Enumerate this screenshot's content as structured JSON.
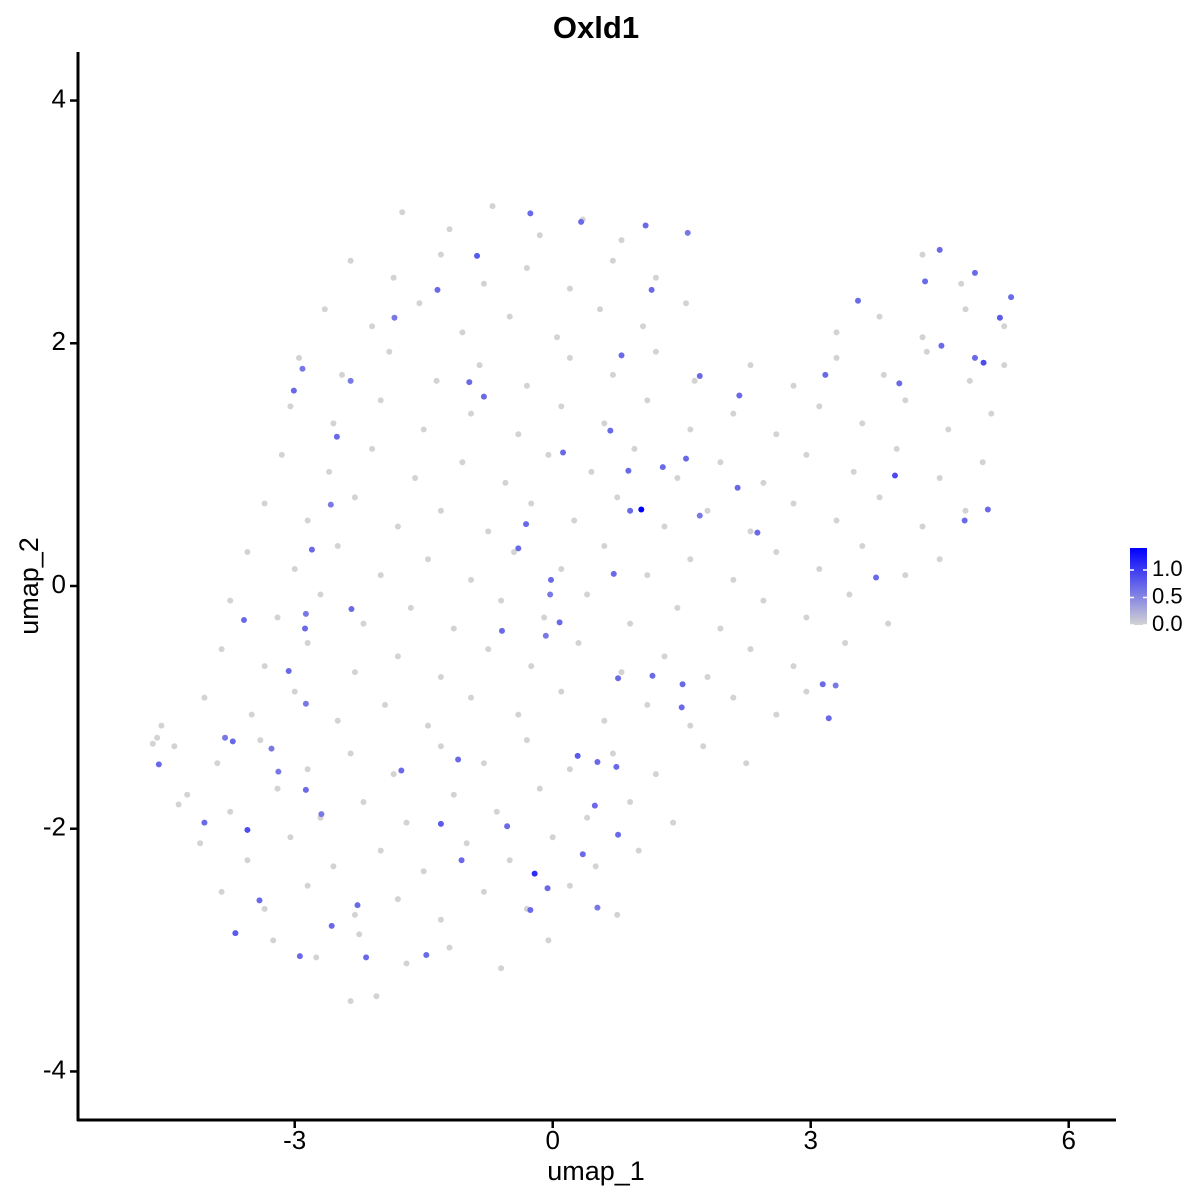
{
  "chart_data": {
    "type": "scatter",
    "title": "Oxld1",
    "x_label": "umap_1",
    "y_label": "umap_2",
    "xlim": [
      -5.52,
      6.55
    ],
    "ylim": [
      -4.4,
      4.4
    ],
    "xticks": [
      -3,
      0,
      3,
      6
    ],
    "yticks": [
      -4,
      -2,
      0,
      2,
      4
    ],
    "colorscale": {
      "low": "#d3d3d3",
      "high": "#0000ff",
      "lim": [
        0,
        1.4
      ],
      "ticks": [
        {
          "value": 0,
          "label": "0.0"
        },
        0.5,
        {
          "value": 1,
          "label": "1.0"
        }
      ]
    },
    "x": [
      -1.75,
      -1.2,
      -0.7,
      -0.15,
      0.35,
      0.8,
      -2.35,
      -1.85,
      -1.3,
      -0.8,
      -0.3,
      0.2,
      0.7,
      1.2,
      4.3,
      4.75,
      -2.65,
      -2.1,
      -1.55,
      -1.05,
      -0.5,
      0.05,
      0.55,
      1.05,
      1.55,
      3.3,
      3.8,
      4.3,
      4.8,
      5.25,
      -2.95,
      -2.45,
      -1.9,
      -1.35,
      -0.85,
      -0.3,
      0.2,
      0.7,
      1.2,
      1.65,
      2.3,
      2.8,
      3.3,
      3.85,
      4.35,
      4.85,
      5.25,
      -3.05,
      -2.55,
      -2.0,
      -1.5,
      -0.95,
      -0.4,
      0.1,
      0.6,
      1.1,
      1.6,
      2.1,
      2.6,
      3.1,
      3.6,
      4.1,
      4.6,
      5.1,
      -3.15,
      -2.6,
      -2.1,
      -1.6,
      -1.05,
      -0.55,
      -0.05,
      0.45,
      0.95,
      1.45,
      1.95,
      2.45,
      2.95,
      3.5,
      4.0,
      4.5,
      5.0,
      -3.35,
      -2.85,
      -2.3,
      -1.8,
      -1.3,
      -0.75,
      -0.25,
      0.25,
      0.75,
      1.3,
      1.8,
      2.3,
      2.8,
      3.3,
      3.8,
      4.3,
      4.8,
      -3.55,
      -3.0,
      -2.5,
      -2.0,
      -1.45,
      -0.95,
      -0.45,
      0.1,
      0.6,
      1.1,
      1.6,
      2.1,
      2.6,
      3.1,
      3.6,
      4.1,
      4.5,
      -3.75,
      -3.2,
      -2.7,
      -2.2,
      -1.65,
      -1.15,
      -0.6,
      -0.1,
      0.4,
      0.9,
      1.45,
      1.95,
      2.45,
      2.95,
      3.45,
      3.9,
      -3.85,
      -3.35,
      -2.85,
      -2.3,
      -1.8,
      -1.3,
      -0.75,
      -0.25,
      0.3,
      0.8,
      1.3,
      1.8,
      2.3,
      2.8,
      3.4,
      -4.05,
      -3.5,
      -3.0,
      -2.5,
      -1.95,
      -1.45,
      -0.95,
      -0.4,
      0.1,
      0.6,
      1.1,
      1.6,
      2.1,
      2.6,
      2.95,
      -4.4,
      -3.9,
      -3.4,
      -2.85,
      -2.35,
      -1.85,
      -1.3,
      -0.8,
      -0.3,
      0.2,
      0.7,
      1.2,
      1.75,
      2.25,
      -4.25,
      -3.75,
      -3.2,
      -2.7,
      -2.2,
      -1.7,
      -1.15,
      -0.65,
      -0.15,
      0.4,
      0.9,
      1.4,
      -4.1,
      -3.55,
      -3.05,
      -2.55,
      -2.0,
      -1.5,
      -1.0,
      -0.5,
      0.0,
      0.5,
      1.0,
      -3.85,
      -3.35,
      -2.85,
      -2.3,
      -1.8,
      -1.3,
      -0.8,
      -0.3,
      0.2,
      0.75,
      -3.25,
      -2.75,
      -2.25,
      -1.7,
      -1.2,
      -0.6,
      -0.05,
      -2.35,
      -2.05,
      -4.6,
      -4.65,
      -4.55,
      -4.35,
      1.03,
      -0.21,
      -3.55,
      -4.58,
      -3.59,
      -2.87,
      -3.01,
      -2.91,
      -2.35,
      -1.84,
      -1.34,
      -0.88,
      -0.26,
      0.33,
      1.08,
      1.57,
      1.15,
      0.8,
      0.67,
      0.12,
      1.55,
      1.71,
      2.38,
      3.14,
      3.29,
      3.21,
      3.76,
      3.98,
      4.79,
      5.06,
      4.91,
      5.01,
      4.52,
      4.33,
      4.5,
      4.91,
      5.33,
      5.2,
      4.03,
      3.55,
      3.17,
      2.17,
      1.71,
      0.71,
      -0.02,
      -0.03,
      0.08,
      -0.08,
      -0.59,
      -0.4,
      -0.31,
      -0.8,
      -0.97,
      -2.34,
      -2.88,
      -3.07,
      -2.87,
      -3.27,
      -3.81,
      -3.72,
      -4.05,
      -3.69,
      -3.41,
      -2.94,
      -2.57,
      -2.27,
      -2.17,
      -1.47,
      -1.3,
      -1.06,
      -1.1,
      -0.53,
      -0.06,
      0.35,
      0.49,
      0.29,
      0.52,
      0.74,
      0.76,
      -0.26,
      0.52,
      1.5,
      1.51,
      1.16,
      0.76,
      -1.76,
      -2.69,
      -2.87,
      -3.19,
      -2.51,
      -2.58,
      -2.8,
      0.88,
      0.9,
      1.28,
      2.15
    ],
    "y": [
      3.08,
      2.94,
      3.13,
      2.89,
      3.02,
      2.85,
      2.68,
      2.54,
      2.73,
      2.49,
      2.62,
      2.45,
      2.68,
      2.54,
      2.73,
      2.49,
      2.28,
      2.14,
      2.33,
      2.09,
      2.22,
      2.05,
      2.28,
      2.14,
      2.33,
      2.09,
      2.22,
      2.05,
      2.28,
      2.14,
      1.88,
      1.74,
      1.93,
      1.69,
      1.82,
      1.65,
      1.88,
      1.74,
      1.93,
      1.69,
      1.82,
      1.65,
      1.88,
      1.74,
      1.93,
      1.69,
      1.82,
      1.48,
      1.34,
      1.53,
      1.29,
      1.42,
      1.25,
      1.48,
      1.34,
      1.53,
      1.29,
      1.42,
      1.25,
      1.48,
      1.34,
      1.53,
      1.29,
      1.42,
      1.08,
      0.94,
      1.13,
      0.89,
      1.02,
      0.85,
      1.08,
      0.94,
      1.13,
      0.89,
      1.02,
      0.85,
      1.08,
      0.94,
      1.13,
      0.89,
      1.02,
      0.68,
      0.54,
      0.73,
      0.49,
      0.62,
      0.45,
      0.68,
      0.54,
      0.73,
      0.49,
      0.62,
      0.45,
      0.68,
      0.54,
      0.73,
      0.49,
      0.62,
      0.28,
      0.14,
      0.33,
      0.09,
      0.22,
      0.05,
      0.28,
      0.14,
      0.33,
      0.09,
      0.22,
      0.05,
      0.28,
      0.14,
      0.33,
      0.09,
      0.22,
      -0.12,
      -0.26,
      -0.07,
      -0.31,
      -0.18,
      -0.35,
      -0.12,
      -0.26,
      -0.07,
      -0.31,
      -0.18,
      -0.35,
      -0.12,
      -0.26,
      -0.07,
      -0.31,
      -0.52,
      -0.66,
      -0.47,
      -0.71,
      -0.58,
      -0.75,
      -0.52,
      -0.66,
      -0.47,
      -0.71,
      -0.58,
      -0.75,
      -0.52,
      -0.66,
      -0.47,
      -0.92,
      -1.06,
      -0.87,
      -1.11,
      -0.98,
      -1.15,
      -0.92,
      -1.06,
      -0.87,
      -1.11,
      -0.98,
      -1.15,
      -0.92,
      -1.06,
      -0.87,
      -1.32,
      -1.46,
      -1.27,
      -1.51,
      -1.38,
      -1.55,
      -1.32,
      -1.46,
      -1.27,
      -1.51,
      -1.38,
      -1.55,
      -1.32,
      -1.46,
      -1.72,
      -1.86,
      -1.67,
      -1.91,
      -1.78,
      -1.95,
      -1.72,
      -1.86,
      -1.67,
      -1.91,
      -1.78,
      -1.95,
      -2.12,
      -2.26,
      -2.07,
      -2.31,
      -2.18,
      -2.35,
      -2.12,
      -2.26,
      -2.07,
      -2.31,
      -2.18,
      -2.52,
      -2.66,
      -2.47,
      -2.71,
      -2.58,
      -2.75,
      -2.52,
      -2.66,
      -2.47,
      -2.71,
      -2.92,
      -3.06,
      -2.87,
      -3.11,
      -2.98,
      -3.15,
      -2.92,
      -3.42,
      -3.38,
      -1.25,
      -1.3,
      -1.15,
      -1.8,
      0.63,
      -2.37,
      -2.01,
      -1.47,
      -0.28,
      -0.23,
      1.61,
      1.79,
      1.69,
      2.21,
      2.44,
      2.72,
      3.07,
      3.0,
      2.97,
      2.91,
      2.44,
      1.9,
      1.28,
      1.1,
      1.05,
      0.58,
      0.44,
      -0.81,
      -0.82,
      -1.09,
      0.07,
      0.91,
      0.54,
      0.63,
      1.88,
      1.84,
      1.98,
      2.51,
      2.77,
      2.58,
      2.38,
      2.21,
      1.67,
      2.35,
      1.74,
      1.57,
      1.73,
      0.1,
      0.05,
      -0.07,
      -0.3,
      -0.41,
      -0.37,
      0.31,
      0.51,
      1.56,
      1.68,
      -0.19,
      -0.35,
      -0.7,
      -0.97,
      -1.34,
      -1.25,
      -1.28,
      -1.95,
      -2.86,
      -2.59,
      -3.05,
      -2.8,
      -2.63,
      -3.06,
      -3.04,
      -1.96,
      -2.26,
      -1.43,
      -1.98,
      -2.49,
      -2.21,
      -1.81,
      -1.4,
      -1.45,
      -1.49,
      -2.05,
      -2.67,
      -2.65,
      -1.0,
      -0.81,
      -0.74,
      -0.76,
      -1.52,
      -1.88,
      -1.68,
      -1.53,
      1.23,
      0.67,
      0.3,
      0.95,
      0.62,
      0.98,
      0.81
    ],
    "values": [
      0,
      0,
      0,
      0,
      0,
      0,
      0,
      0,
      0,
      0,
      0,
      0,
      0,
      0,
      0,
      0,
      0,
      0,
      0,
      0,
      0,
      0,
      0,
      0,
      0,
      0,
      0,
      0,
      0,
      0,
      0,
      0,
      0,
      0,
      0,
      0,
      0,
      0,
      0,
      0,
      0,
      0,
      0,
      0,
      0,
      0,
      0,
      0,
      0,
      0,
      0,
      0,
      0,
      0,
      0,
      0,
      0,
      0,
      0,
      0,
      0,
      0,
      0,
      0,
      0,
      0,
      0,
      0,
      0,
      0,
      0,
      0,
      0,
      0,
      0,
      0,
      0,
      0,
      0,
      0,
      0,
      0,
      0,
      0,
      0,
      0,
      0,
      0,
      0,
      0,
      0,
      0,
      0,
      0,
      0,
      0,
      0,
      0,
      0,
      0,
      0,
      0,
      0,
      0,
      0,
      0,
      0,
      0,
      0,
      0,
      0,
      0,
      0,
      0,
      0,
      0,
      0,
      0,
      0,
      0,
      0,
      0,
      0,
      0,
      0,
      0,
      0,
      0,
      0,
      0,
      0,
      0,
      0,
      0,
      0,
      0,
      0,
      0,
      0,
      0,
      0,
      0,
      0,
      0,
      0,
      0,
      0,
      0,
      0,
      0,
      0,
      0,
      0,
      0,
      0,
      0,
      0,
      0,
      0,
      0,
      0,
      0,
      0,
      0,
      0,
      0,
      0,
      0,
      0,
      0,
      0,
      0,
      0,
      0,
      0,
      0,
      0,
      0,
      0,
      0,
      0,
      0,
      0,
      0,
      0,
      0,
      0,
      0,
      0,
      0,
      0,
      0,
      0,
      0,
      0,
      0,
      0,
      0,
      0,
      0,
      0,
      0,
      0,
      0,
      0,
      0,
      0,
      0,
      0,
      0,
      0,
      0,
      0,
      0,
      0,
      0,
      0,
      0,
      0,
      0,
      0,
      1.4,
      1.1,
      0.9,
      0.7,
      0.7,
      0.6,
      0.7,
      0.6,
      0.6,
      0.6,
      0.7,
      0.8,
      0.7,
      0.7,
      0.7,
      0.6,
      0.7,
      0.7,
      0.7,
      0.7,
      0.7,
      0.6,
      0.7,
      0.7,
      0.6,
      0.7,
      0.7,
      0.9,
      0.7,
      0.7,
      0.7,
      0.9,
      0.7,
      0.7,
      0.7,
      0.7,
      0.7,
      0.8,
      0.7,
      0.7,
      0.7,
      0.7,
      0.7,
      0.7,
      0.7,
      0.6,
      0.7,
      0.6,
      0.7,
      0.7,
      0.7,
      0.7,
      0.7,
      0.7,
      0.7,
      0.7,
      0.6,
      0.6,
      0.6,
      0.7,
      0.7,
      0.8,
      0.7,
      0.7,
      0.7,
      0.7,
      0.7,
      0.7,
      0.8,
      0.7,
      0.7,
      0.7,
      0.7,
      0.7,
      0.7,
      0.8,
      0.7,
      0.7,
      0.7,
      0.7,
      0.6,
      0.7,
      0.7,
      0.7,
      0.7,
      0.7,
      0.6,
      0.7,
      0.6,
      0.7,
      0.6,
      0.7,
      0.7,
      0.7,
      0.7,
      0.7
    ]
  }
}
